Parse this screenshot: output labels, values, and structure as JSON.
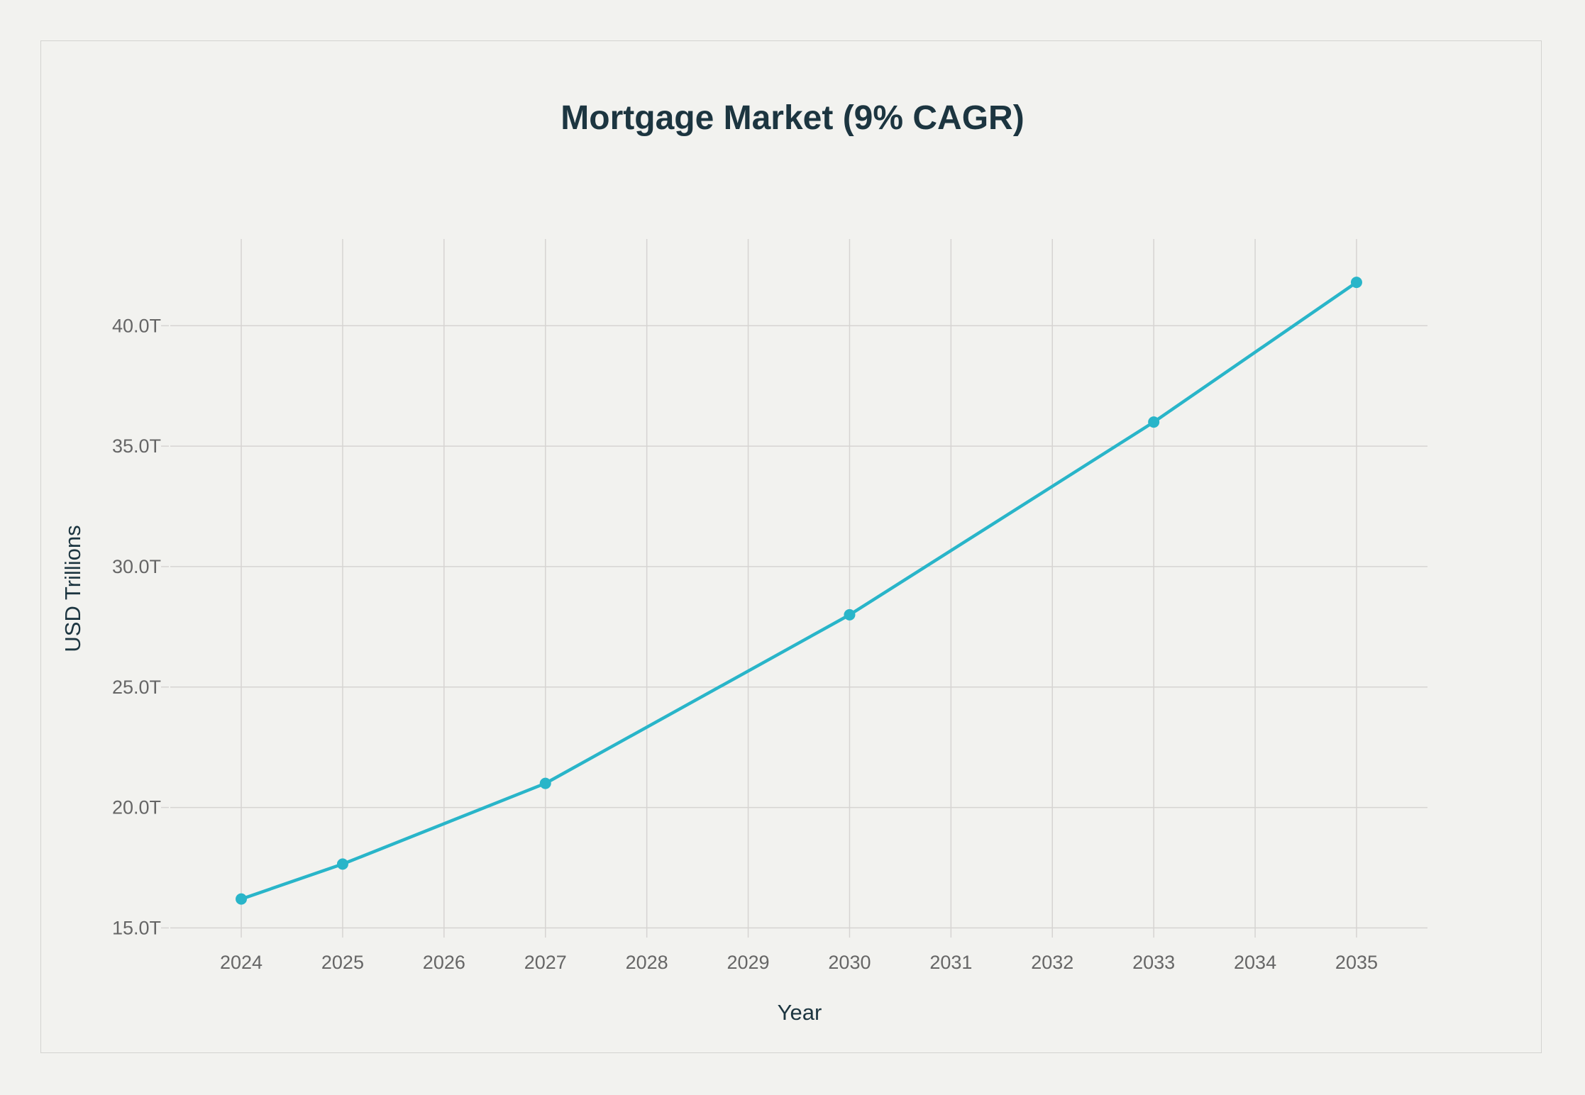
{
  "chart_data": {
    "type": "line",
    "title": "Mortgage Market (9% CAGR)",
    "xlabel": "Year",
    "ylabel": "USD Trillions",
    "x_ticks": [
      "2024",
      "2025",
      "2026",
      "2027",
      "2028",
      "2029",
      "2030",
      "2031",
      "2032",
      "2033",
      "2034",
      "2035"
    ],
    "y_ticks": [
      {
        "value": 15,
        "label": "15.0T"
      },
      {
        "value": 20,
        "label": "20.0T"
      },
      {
        "value": 25,
        "label": "25.0T"
      },
      {
        "value": 30,
        "label": "30.0T"
      },
      {
        "value": 35,
        "label": "35.0T"
      },
      {
        "value": 40,
        "label": "40.0T"
      }
    ],
    "xlim": [
      2023.3,
      2035.7
    ],
    "ylim": [
      14.6,
      43.6
    ],
    "grid": true,
    "series": [
      {
        "color": "#29b5c9",
        "points": [
          {
            "x": 2024,
            "y": 16.2
          },
          {
            "x": 2025,
            "y": 17.65
          },
          {
            "x": 2027,
            "y": 21.0
          },
          {
            "x": 2030,
            "y": 28.0
          },
          {
            "x": 2033,
            "y": 36.0
          },
          {
            "x": 2035,
            "y": 41.8
          }
        ]
      }
    ],
    "colors": {
      "background": "#f2f2ef",
      "grid": "#d6d4d2",
      "title": "#1c3540",
      "tick_text": "#666666"
    }
  }
}
